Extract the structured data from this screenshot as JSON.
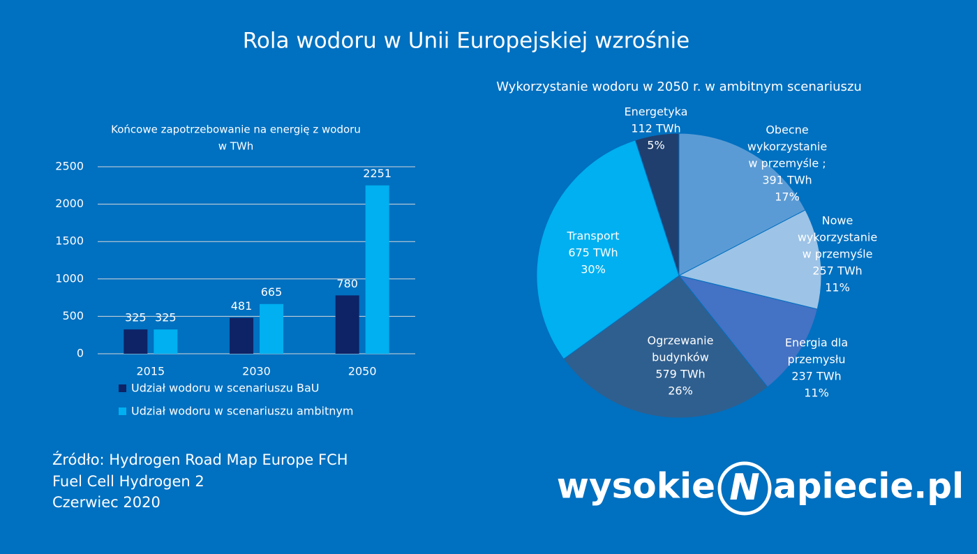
{
  "title": "Rola wodoru w Unii Europejskiej wzrośnie",
  "source": [
    "Źródło: Hydrogen Road Map Europe FCH",
    "Fuel Cell Hydrogen 2",
    "Czerwiec 2020"
  ],
  "logo": {
    "left": "wysokie",
    "mark": "N",
    "right": "apiecie.pl"
  },
  "chart_data": [
    {
      "type": "bar",
      "title": [
        "Końcowe zapotrzebowanie na energię z wodoru",
        "w TWh"
      ],
      "categories": [
        "2015",
        "2030",
        "2050"
      ],
      "series": [
        {
          "name": "Udział wodoru w scenariuszu BaU",
          "color": "#0d2366",
          "values": [
            325,
            481,
            780
          ]
        },
        {
          "name": "Udział wodoru w scenariuszu ambitnym",
          "color": "#00b0f0",
          "values": [
            325,
            665,
            2251
          ]
        }
      ],
      "ylim": [
        0,
        2500
      ],
      "yticks": [
        0,
        500,
        1000,
        1500,
        2000,
        2500
      ],
      "grid": true
    },
    {
      "type": "pie",
      "title": "Wykorzystanie wodoru w 2050 r. w ambitnym scenariuszu",
      "labels": [
        [
          "Obecne",
          "wykorzystanie",
          "w przemyśle ;"
        ],
        [
          "Nowe",
          "wykorzystanie",
          "w przemyśle"
        ],
        [
          "Energia dla",
          "przemysłu"
        ],
        [
          "Ogrzewanie",
          "budynków"
        ],
        [
          "Transport"
        ],
        [
          "Energetyka"
        ]
      ],
      "values": [
        391,
        257,
        237,
        579,
        675,
        112
      ],
      "value_labels": [
        "391 TWh",
        "257 TWh",
        "237 TWh",
        "579 TWh",
        "675 TWh",
        "112 TWh"
      ],
      "percentages": [
        17,
        11,
        11,
        26,
        30,
        5
      ],
      "percentage_labels": [
        "17%",
        "11%",
        "11%",
        "26%",
        "30%",
        "5%"
      ],
      "colors": [
        "#5b9bd5",
        "#9dc3e6",
        "#4472c4",
        "#2f5f8f",
        "#00b0f0",
        "#203f6e"
      ]
    }
  ]
}
